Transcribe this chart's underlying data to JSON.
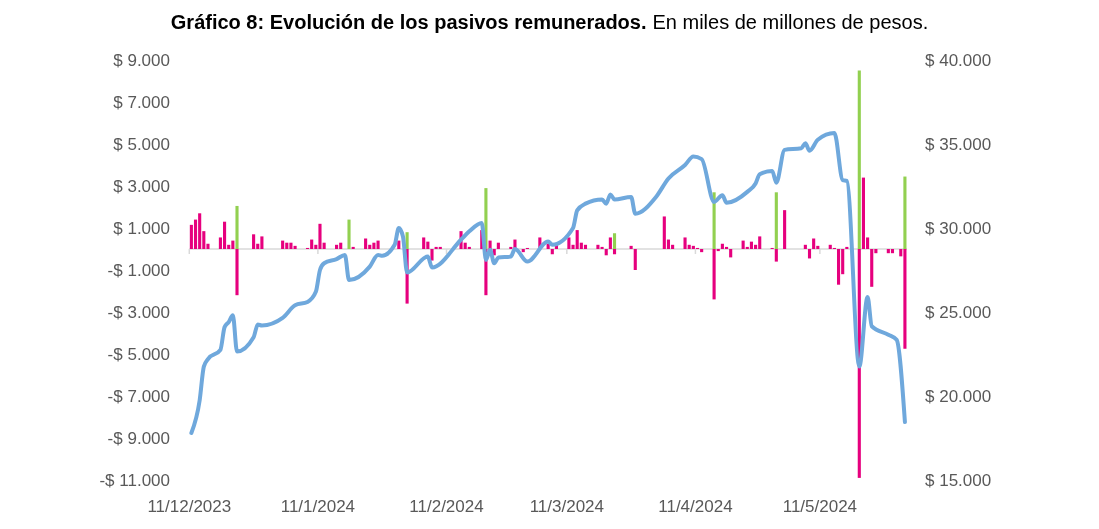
{
  "chart_data": {
    "type": "bar",
    "title": "Gráfico 8: Evolución de los pasivos remunerados.",
    "subtitle": "En miles de millones de pesos.",
    "xlim": [
      "2023-12-11",
      "2024-06-01"
    ],
    "xticks": [
      {
        "value": "2023-12-11",
        "label": "11/12/2023"
      },
      {
        "value": "2024-01-11",
        "label": "11/1/2024"
      },
      {
        "value": "2024-02-11",
        "label": "11/2/2024"
      },
      {
        "value": "2024-03-11",
        "label": "11/3/2024"
      },
      {
        "value": "2024-04-11",
        "label": "11/4/2024"
      },
      {
        "value": "2024-05-11",
        "label": "11/5/2024"
      }
    ],
    "ylim": [
      -11000,
      9000
    ],
    "yticks": [
      {
        "value": 9000,
        "label": "$ 9.000"
      },
      {
        "value": 7000,
        "label": "$ 7.000"
      },
      {
        "value": 5000,
        "label": "$ 5.000"
      },
      {
        "value": 3000,
        "label": "$ 3.000"
      },
      {
        "value": 1000,
        "label": "$ 1.000"
      },
      {
        "value": -1000,
        "label": "-$ 1.000"
      },
      {
        "value": -3000,
        "label": "-$ 3.000"
      },
      {
        "value": -5000,
        "label": "-$ 5.000"
      },
      {
        "value": -7000,
        "label": "-$ 7.000"
      },
      {
        "value": -9000,
        "label": "-$ 9.000"
      },
      {
        "value": -11000,
        "label": "-$ 11.000"
      }
    ],
    "y2lim": [
      15000,
      40000
    ],
    "y2ticks": [
      {
        "value": 40000,
        "label": "$ 40.000"
      },
      {
        "value": 35000,
        "label": "$ 35.000"
      },
      {
        "value": 30000,
        "label": "$ 30.000"
      },
      {
        "value": 25000,
        "label": "$ 25.000"
      },
      {
        "value": 20000,
        "label": "$ 20.000"
      },
      {
        "value": 15000,
        "label": "$ 15.000"
      }
    ],
    "series": [
      {
        "color": "#e6007e",
        "x": [
          "2023-12-11",
          "2023-12-12",
          "2023-12-13",
          "2023-12-14",
          "2023-12-15",
          "2023-12-18",
          "2023-12-19",
          "2023-12-20",
          "2023-12-21",
          "2023-12-22",
          "2023-12-26",
          "2023-12-27",
          "2023-12-28",
          "2024-01-02",
          "2024-01-03",
          "2024-01-04",
          "2024-01-05",
          "2024-01-08",
          "2024-01-09",
          "2024-01-10",
          "2024-01-11",
          "2024-01-12",
          "2024-01-15",
          "2024-01-16",
          "2024-01-19",
          "2024-01-22",
          "2024-01-23",
          "2024-01-24",
          "2024-01-25",
          "2024-01-30",
          "2024-02-01",
          "2024-02-05",
          "2024-02-06",
          "2024-02-07",
          "2024-02-08",
          "2024-02-09",
          "2024-02-14",
          "2024-02-15",
          "2024-02-16",
          "2024-02-19",
          "2024-02-20",
          "2024-02-21",
          "2024-02-22",
          "2024-02-23",
          "2024-02-26",
          "2024-02-27",
          "2024-02-29",
          "2024-03-01",
          "2024-03-04",
          "2024-03-06",
          "2024-03-07",
          "2024-03-08",
          "2024-03-11",
          "2024-03-12",
          "2024-03-13",
          "2024-03-14",
          "2024-03-15",
          "2024-03-18",
          "2024-03-19",
          "2024-03-20",
          "2024-03-21",
          "2024-03-22",
          "2024-03-26",
          "2024-03-27",
          "2024-04-03",
          "2024-04-04",
          "2024-04-05",
          "2024-04-08",
          "2024-04-09",
          "2024-04-10",
          "2024-04-11",
          "2024-04-12",
          "2024-04-15",
          "2024-04-16",
          "2024-04-17",
          "2024-04-18",
          "2024-04-19",
          "2024-04-22",
          "2024-04-23",
          "2024-04-24",
          "2024-04-25",
          "2024-04-26",
          "2024-04-29",
          "2024-04-30",
          "2024-05-02",
          "2024-05-07",
          "2024-05-08",
          "2024-05-09",
          "2024-05-10",
          "2024-05-13",
          "2024-05-14",
          "2024-05-15",
          "2024-05-16",
          "2024-05-17",
          "2024-05-20",
          "2024-05-21",
          "2024-05-22",
          "2024-05-23",
          "2024-05-24",
          "2024-05-27",
          "2024-05-28",
          "2024-05-30",
          "2024-05-31"
        ],
        "values": [
          1150,
          1400,
          1700,
          850,
          250,
          550,
          1300,
          200,
          400,
          -2200,
          700,
          250,
          600,
          400,
          300,
          300,
          150,
          50,
          450,
          200,
          1200,
          300,
          200,
          300,
          100,
          500,
          200,
          300,
          400,
          400,
          -2600,
          550,
          350,
          -550,
          100,
          100,
          850,
          300,
          100,
          900,
          -2200,
          400,
          -300,
          300,
          100,
          450,
          -150,
          50,
          550,
          250,
          -250,
          200,
          550,
          200,
          900,
          300,
          200,
          200,
          100,
          -300,
          550,
          -250,
          150,
          -1000,
          1550,
          450,
          200,
          550,
          200,
          150,
          50,
          -150,
          -2400,
          -100,
          250,
          100,
          -400,
          400,
          100,
          350,
          200,
          600,
          50,
          -600,
          1850,
          200,
          -450,
          500,
          150,
          200,
          50,
          -1700,
          -1200,
          100,
          -10900,
          3400,
          550,
          -1800,
          -200,
          -200,
          -200,
          -350,
          -4750
        ]
      },
      {
        "color": "#92d050",
        "x": [
          "2023-12-22",
          "2024-01-18",
          "2024-02-01",
          "2024-02-20",
          "2024-03-22",
          "2024-04-15",
          "2024-04-30",
          "2024-05-20",
          "2024-05-31"
        ],
        "values": [
          2050,
          1400,
          800,
          2900,
          750,
          2700,
          2700,
          8500,
          3450
        ]
      },
      {
        "type": "line",
        "axis": "y2",
        "color": "#6fa8dc",
        "x": [
          "2023-12-11",
          "2023-12-13",
          "2023-12-14",
          "2023-12-15",
          "2023-12-18",
          "2023-12-19",
          "2023-12-20",
          "2023-12-21",
          "2023-12-22",
          "2023-12-26",
          "2023-12-27",
          "2023-12-28",
          "2024-01-02",
          "2024-01-05",
          "2024-01-08",
          "2024-01-10",
          "2024-01-11",
          "2024-01-12",
          "2024-01-15",
          "2024-01-17",
          "2024-01-18",
          "2024-01-23",
          "2024-01-25",
          "2024-01-26",
          "2024-01-29",
          "2024-01-30",
          "2024-01-31",
          "2024-02-01",
          "2024-02-06",
          "2024-02-07",
          "2024-02-14",
          "2024-02-16",
          "2024-02-19",
          "2024-02-20",
          "2024-02-21",
          "2024-02-22",
          "2024-02-23",
          "2024-02-26",
          "2024-02-27",
          "2024-03-01",
          "2024-03-06",
          "2024-03-07",
          "2024-03-12",
          "2024-03-13",
          "2024-03-15",
          "2024-03-19",
          "2024-03-20",
          "2024-03-21",
          "2024-03-22",
          "2024-03-26",
          "2024-03-27",
          "2024-04-01",
          "2024-04-04",
          "2024-04-08",
          "2024-04-10",
          "2024-04-12",
          "2024-04-15",
          "2024-04-17",
          "2024-04-18",
          "2024-04-23",
          "2024-04-25",
          "2024-04-26",
          "2024-04-29",
          "2024-04-30",
          "2024-05-02",
          "2024-05-06",
          "2024-05-07",
          "2024-05-08",
          "2024-05-10",
          "2024-05-14",
          "2024-05-16",
          "2024-05-17",
          "2024-05-20",
          "2024-05-22",
          "2024-05-23",
          "2024-05-27",
          "2024-05-29",
          "2024-05-31"
        ],
        "values": [
          17800,
          19750,
          21750,
          22200,
          22750,
          24100,
          24400,
          24800,
          22650,
          23500,
          24250,
          24200,
          24650,
          25400,
          25600,
          26200,
          27500,
          27900,
          28150,
          28400,
          26900,
          27700,
          28400,
          28350,
          29000,
          30000,
          29500,
          27350,
          28300,
          27650,
          29300,
          29800,
          30300,
          28100,
          28700,
          27900,
          28250,
          28300,
          28750,
          28000,
          29200,
          29000,
          30000,
          31050,
          31450,
          31700,
          31450,
          32000,
          31700,
          31850,
          30850,
          31850,
          32950,
          33750,
          34250,
          34100,
          31550,
          31950,
          31500,
          32150,
          32650,
          33200,
          33400,
          32700,
          34650,
          34750,
          35050,
          34600,
          35250,
          35650,
          32850,
          32800,
          21750,
          25900,
          24150,
          23650,
          23350,
          18450
        ]
      }
    ]
  }
}
